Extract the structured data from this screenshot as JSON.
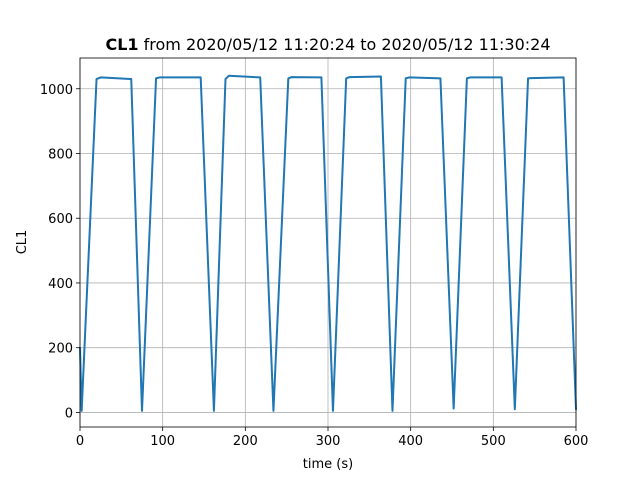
{
  "chart_data": {
    "type": "line",
    "title_bold": "CL1",
    "title_rest": " from 2020/05/12 11:20:24 to 2020/05/12 11:30:24",
    "xlabel": "time (s)",
    "ylabel": "CL1",
    "xlim": [
      0,
      600
    ],
    "ylim": [
      -45,
      1095
    ],
    "xticks": [
      0,
      100,
      200,
      300,
      400,
      500,
      600
    ],
    "yticks": [
      0,
      200,
      400,
      600,
      800,
      1000
    ],
    "grid": true,
    "series": [
      {
        "color": "#1f77b4",
        "x": [
          0,
          2,
          20,
          25,
          62,
          75,
          92,
          96,
          146,
          162,
          176,
          180,
          218,
          234,
          252,
          256,
          292,
          306,
          322,
          326,
          364,
          378,
          394,
          398,
          436,
          452,
          468,
          472,
          510,
          526,
          542,
          546,
          585,
          600
        ],
        "y": [
          200,
          5,
          1030,
          1035,
          1030,
          5,
          1032,
          1035,
          1035,
          5,
          1030,
          1040,
          1035,
          5,
          1032,
          1036,
          1035,
          5,
          1032,
          1036,
          1038,
          5,
          1032,
          1035,
          1032,
          12,
          1032,
          1035,
          1035,
          10,
          1032,
          1033,
          1035,
          10
        ]
      }
    ]
  }
}
